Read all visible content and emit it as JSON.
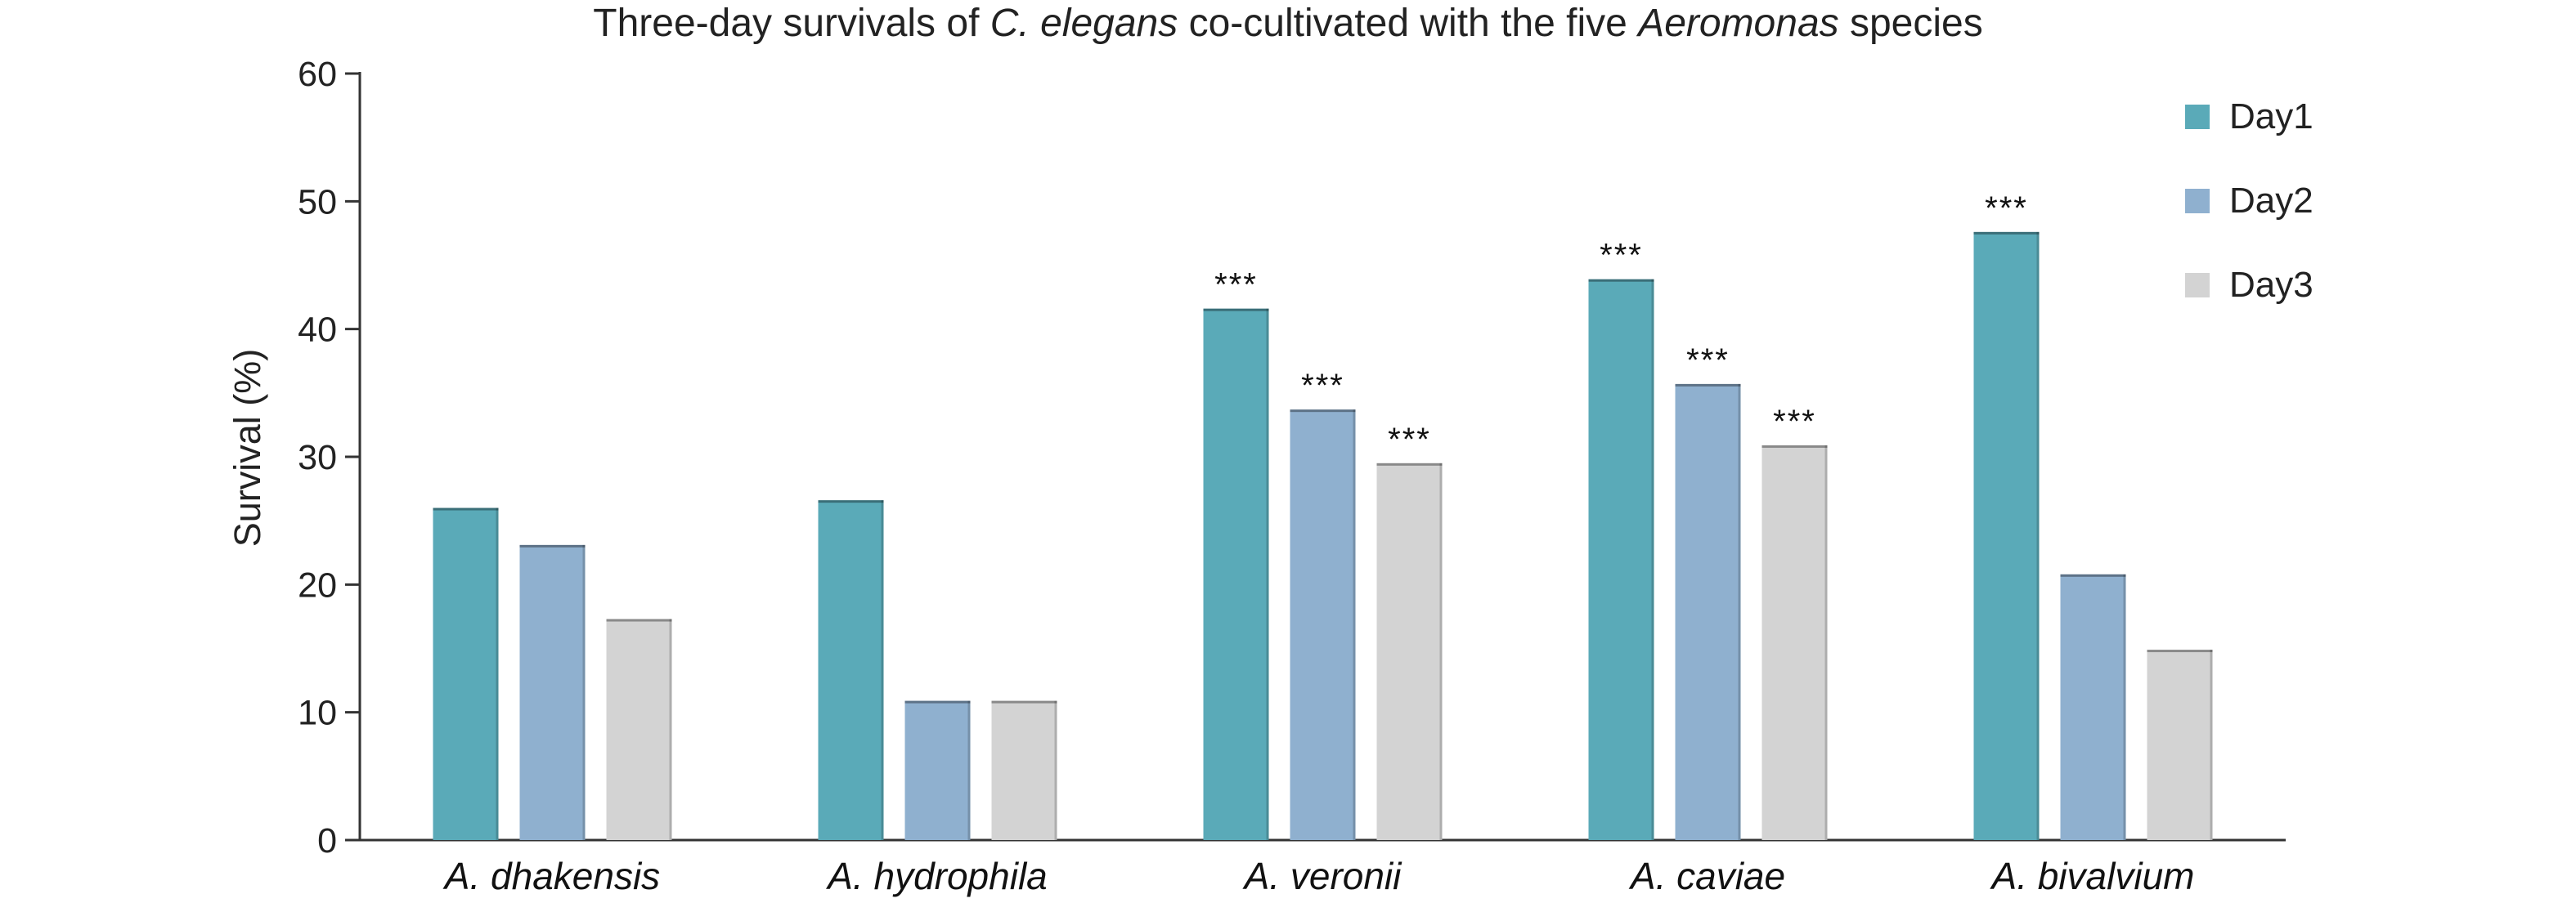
{
  "chart_data": {
    "type": "bar",
    "title_parts": [
      {
        "text": "Three-day survivals of ",
        "italic": false
      },
      {
        "text": "C. elegans",
        "italic": true
      },
      {
        "text": " co-cultivated with the five ",
        "italic": false
      },
      {
        "text": "Aeromonas",
        "italic": true
      },
      {
        "text": " species",
        "italic": false
      }
    ],
    "xlabel": "",
    "ylabel": "Survival (%)",
    "ylim": [
      0,
      60
    ],
    "yticks": [
      0,
      10,
      20,
      30,
      40,
      50,
      60
    ],
    "categories": [
      "A. dhakensis",
      "A. hydrophila",
      "A. veronii",
      "A. caviae",
      "A. bivalvium"
    ],
    "series": [
      {
        "name": "Day1",
        "color": "#5aaab8",
        "values": [
          26.0,
          26.6,
          41.6,
          43.9,
          47.6
        ],
        "significance": [
          "",
          "",
          "***",
          "***",
          "***"
        ]
      },
      {
        "name": "Day2",
        "color": "#8fb0cf",
        "values": [
          23.1,
          10.9,
          33.7,
          35.7,
          20.8
        ],
        "significance": [
          "",
          "",
          "***",
          "***",
          ""
        ]
      },
      {
        "name": "Day3",
        "color": "#d3d3d3",
        "values": [
          17.3,
          10.9,
          29.5,
          30.9,
          14.9
        ],
        "significance": [
          "",
          "",
          "***",
          "***",
          ""
        ]
      }
    ],
    "legend_position": "top-right",
    "grid": false
  }
}
